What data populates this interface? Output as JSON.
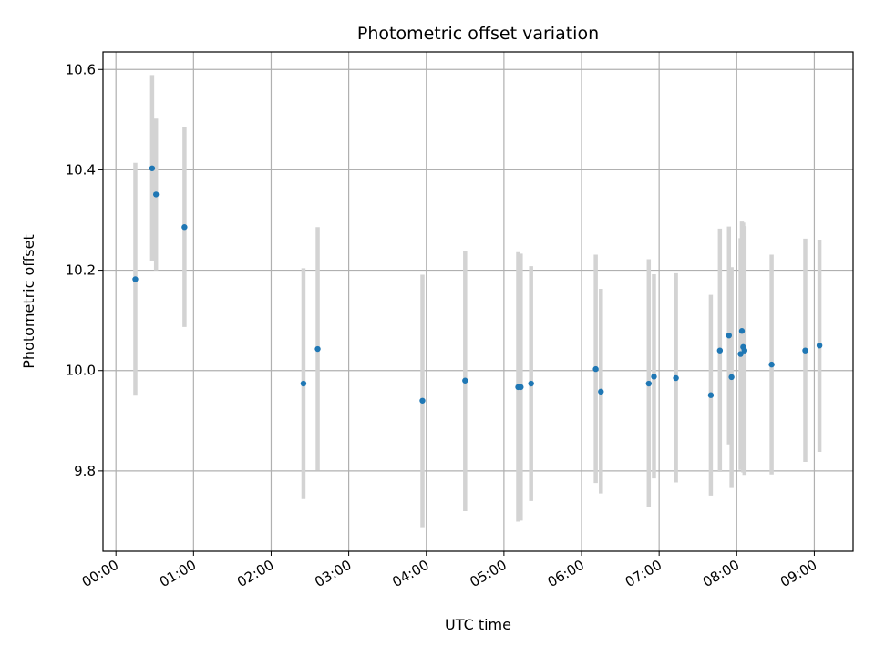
{
  "chart_data": {
    "type": "scatter",
    "title": "Photometric offset variation",
    "xlabel": "UTC time",
    "ylabel": "Photometric offset",
    "xlim": [
      "23:50",
      "09:30"
    ],
    "ylim": [
      9.64,
      10.635
    ],
    "x_ticks": [
      "00:00",
      "01:00",
      "02:00",
      "03:00",
      "04:00",
      "05:00",
      "06:00",
      "07:00",
      "08:00",
      "09:00"
    ],
    "y_ticks": [
      "9.8",
      "10.0",
      "10.2",
      "10.4",
      "10.6"
    ],
    "grid": true,
    "point_color": "#1f77b4",
    "errorbar_color": "#d3d3d3",
    "points": [
      {
        "t": "00:15",
        "y": 10.182,
        "lo": 9.95,
        "hi": 10.414
      },
      {
        "t": "00:28",
        "y": 10.403,
        "lo": 10.218,
        "hi": 10.589
      },
      {
        "t": "00:31",
        "y": 10.351,
        "lo": 10.2,
        "hi": 10.502
      },
      {
        "t": "00:53",
        "y": 10.286,
        "lo": 10.087,
        "hi": 10.486
      },
      {
        "t": "02:25",
        "y": 9.974,
        "lo": 9.744,
        "hi": 10.204
      },
      {
        "t": "02:36",
        "y": 10.043,
        "lo": 9.801,
        "hi": 10.286
      },
      {
        "t": "03:57",
        "y": 9.94,
        "lo": 9.688,
        "hi": 10.191
      },
      {
        "t": "04:30",
        "y": 9.98,
        "lo": 9.72,
        "hi": 10.238
      },
      {
        "t": "05:11",
        "y": 9.967,
        "lo": 9.699,
        "hi": 10.236
      },
      {
        "t": "05:13",
        "y": 9.967,
        "lo": 9.701,
        "hi": 10.233
      },
      {
        "t": "05:21",
        "y": 9.974,
        "lo": 9.74,
        "hi": 10.208
      },
      {
        "t": "06:11",
        "y": 10.003,
        "lo": 9.776,
        "hi": 10.231
      },
      {
        "t": "06:15",
        "y": 9.958,
        "lo": 9.755,
        "hi": 10.163
      },
      {
        "t": "06:52",
        "y": 9.974,
        "lo": 9.729,
        "hi": 10.222
      },
      {
        "t": "06:56",
        "y": 9.988,
        "lo": 9.785,
        "hi": 10.192
      },
      {
        "t": "07:13",
        "y": 9.985,
        "lo": 9.777,
        "hi": 10.194
      },
      {
        "t": "07:40",
        "y": 9.951,
        "lo": 9.751,
        "hi": 10.151
      },
      {
        "t": "07:47",
        "y": 10.04,
        "lo": 9.798,
        "hi": 10.283
      },
      {
        "t": "07:54",
        "y": 10.07,
        "lo": 9.853,
        "hi": 10.287
      },
      {
        "t": "07:56",
        "y": 9.987,
        "lo": 9.766,
        "hi": 10.206
      },
      {
        "t": "08:03",
        "y": 10.033,
        "lo": 9.802,
        "hi": 10.264
      },
      {
        "t": "08:04",
        "y": 10.079,
        "lo": 9.861,
        "hi": 10.297
      },
      {
        "t": "08:05",
        "y": 10.047,
        "lo": 9.797,
        "hi": 10.295
      },
      {
        "t": "08:06",
        "y": 10.04,
        "lo": 9.792,
        "hi": 10.288
      },
      {
        "t": "08:27",
        "y": 10.012,
        "lo": 9.793,
        "hi": 10.231
      },
      {
        "t": "08:53",
        "y": 10.04,
        "lo": 9.818,
        "hi": 10.263
      },
      {
        "t": "09:04",
        "y": 10.05,
        "lo": 9.838,
        "hi": 10.261
      }
    ]
  }
}
